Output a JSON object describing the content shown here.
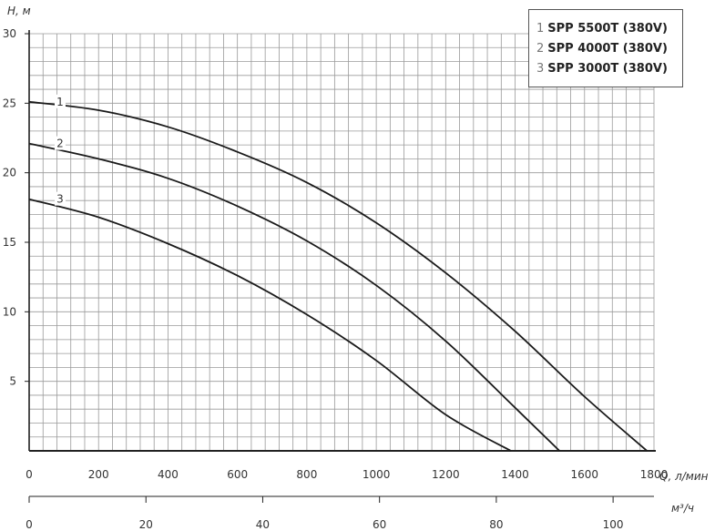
{
  "chart_data": {
    "type": "line",
    "ylabel": "H, м",
    "xlabel": "Q, л/мин",
    "x2label": "м³/ч",
    "xlim": [
      0,
      1800
    ],
    "ylim": [
      0,
      30
    ],
    "x2lim": [
      0,
      107
    ],
    "yticks": [
      5,
      10,
      15,
      20,
      25,
      30
    ],
    "xticks": [
      0,
      200,
      400,
      600,
      800,
      1000,
      1200,
      1400,
      1600,
      1800
    ],
    "x2ticks": [
      0,
      20,
      40,
      60,
      80,
      100
    ],
    "grid": true,
    "legend_position": "top-right",
    "series": [
      {
        "label": "1",
        "name": "SPP 5500T (380V)",
        "x": [
          0,
          200,
          400,
          600,
          800,
          1000,
          1200,
          1400,
          1600,
          1780
        ],
        "y": [
          25.1,
          24.5,
          23.3,
          21.5,
          19.3,
          16.4,
          12.8,
          8.6,
          3.9,
          0
        ]
      },
      {
        "label": "2",
        "name": "SPP 4000T (380V)",
        "x": [
          0,
          200,
          400,
          600,
          800,
          1000,
          1200,
          1400,
          1528
        ],
        "y": [
          22.1,
          21.0,
          19.6,
          17.6,
          15.1,
          11.9,
          7.9,
          3.1,
          0
        ]
      },
      {
        "label": "3",
        "name": "SPP 3000T (380V)",
        "x": [
          0,
          200,
          400,
          600,
          800,
          1000,
          1200,
          1388
        ],
        "y": [
          18.1,
          16.8,
          14.9,
          12.6,
          9.8,
          6.5,
          2.6,
          0
        ]
      }
    ]
  }
}
